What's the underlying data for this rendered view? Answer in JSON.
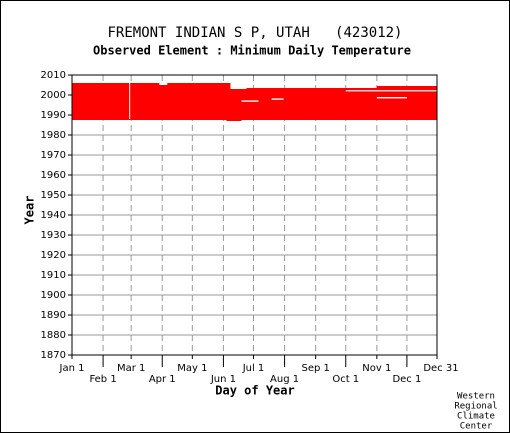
{
  "chart_data": {
    "type": "availability",
    "title": "FREMONT INDIAN S P, UTAH   (423012)",
    "subtitle": "Observed Element : Minimum Daily Temperature",
    "x_label": "Day of Year",
    "y_label": "Year",
    "credit": [
      "Western",
      "Regional",
      "Climate",
      "Center"
    ],
    "color": "#ff0000",
    "gap_color": "#ffffff",
    "grid": true,
    "xlim": [
      1,
      365
    ],
    "xticks": [
      {
        "value": 1,
        "label": "Jan 1"
      },
      {
        "value": 32,
        "label": "Feb 1"
      },
      {
        "value": 60,
        "label": "Mar 1"
      },
      {
        "value": 91,
        "label": "Apr 1"
      },
      {
        "value": 121,
        "label": "May 1"
      },
      {
        "value": 152,
        "label": "Jun 1"
      },
      {
        "value": 182,
        "label": "Jul 1"
      },
      {
        "value": 213,
        "label": "Aug 1"
      },
      {
        "value": 244,
        "label": "Sep 1"
      },
      {
        "value": 274,
        "label": "Oct 1"
      },
      {
        "value": 305,
        "label": "Nov 1"
      },
      {
        "value": 335,
        "label": "Dec 1"
      },
      {
        "value": 365,
        "label": "Dec 31"
      }
    ],
    "ylim": [
      1870,
      2010
    ],
    "yticks": [
      1870,
      1880,
      1890,
      1900,
      1910,
      1920,
      1930,
      1940,
      1950,
      1960,
      1970,
      1980,
      1990,
      2000,
      2010
    ],
    "blocks": [
      {
        "x": [
          1,
          365
        ],
        "y": [
          1987.5,
          2003.5
        ]
      },
      {
        "x": [
          1,
          159
        ],
        "y": [
          2003.5,
          2006
        ]
      },
      {
        "x": [
          305,
          365
        ],
        "y": [
          2003.5,
          2004.5
        ]
      },
      {
        "x": [
          155,
          170
        ],
        "y": [
          1987,
          1987.5
        ]
      }
    ],
    "gaps": [
      {
        "x": [
          58,
          59
        ],
        "y": [
          1988,
          2006
        ]
      },
      {
        "x": [
          170,
          187
        ],
        "y": [
          1996.6,
          1997.3
        ]
      },
      {
        "x": [
          200,
          212
        ],
        "y": [
          1997.6,
          1998.3
        ]
      },
      {
        "x": [
          274,
          365
        ],
        "y": [
          2001.8,
          2002.4
        ]
      },
      {
        "x": [
          305,
          335
        ],
        "y": [
          1998.3,
          1999
        ]
      },
      {
        "x": [
          88,
          96
        ],
        "y": [
          2005,
          2006
        ]
      },
      {
        "x": [
          159,
          175
        ],
        "y": [
          2003,
          2003.5
        ]
      }
    ]
  }
}
